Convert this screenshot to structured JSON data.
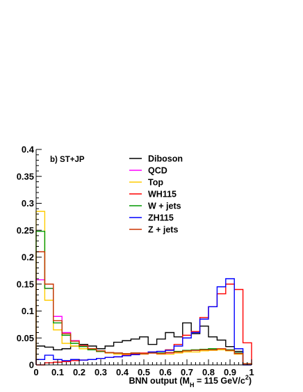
{
  "chart_data": {
    "type": "histogram",
    "panel_label": "b) ST+JP",
    "xlabel": {
      "prefix": "BNN output (M",
      "sub": "H",
      "mid": " = 115 GeV/c",
      "sup": "2",
      "suffix": ")"
    },
    "ylabel": "",
    "xlim": [
      0,
      1
    ],
    "ylim": [
      0,
      0.4
    ],
    "x_ticks": [
      "0",
      "0.1",
      "0.2",
      "0.3",
      "0.4",
      "0.5",
      "0.6",
      "0.7",
      "0.8",
      "0.9",
      "1"
    ],
    "y_ticks": [
      "0",
      "0.05",
      "0.1",
      "0.15",
      "0.2",
      "0.25",
      "0.3",
      "0.35",
      "0.4"
    ],
    "bin_edges": [
      0,
      0.04,
      0.08,
      0.12,
      0.16,
      0.2,
      0.24,
      0.28,
      0.32,
      0.36,
      0.4,
      0.44,
      0.48,
      0.52,
      0.56,
      0.6,
      0.64,
      0.68,
      0.72,
      0.76,
      0.8,
      0.84,
      0.88,
      0.92,
      0.96,
      1.0
    ],
    "legend_position": "top-right",
    "series": [
      {
        "name": "Diboson",
        "color": "#000000",
        "values": [
          0.035,
          0.033,
          0.028,
          0.03,
          0.035,
          0.038,
          0.035,
          0.03,
          0.035,
          0.042,
          0.045,
          0.048,
          0.052,
          0.038,
          0.048,
          0.06,
          0.052,
          0.078,
          0.058,
          0.072,
          0.052,
          0.046,
          0.034,
          0.025,
          0.002
        ]
      },
      {
        "name": "QCD",
        "color": "#ff00ff",
        "values": [
          0.158,
          0.142,
          0.09,
          0.06,
          0.045,
          0.035,
          0.03,
          0.025,
          0.022,
          0.022,
          0.02,
          0.022,
          0.02,
          0.022,
          0.02,
          0.022,
          0.024,
          0.026,
          0.027,
          0.028,
          0.03,
          0.03,
          0.028,
          0.022,
          0.002
        ]
      },
      {
        "name": "Top",
        "color": "#ffcc00",
        "values": [
          0.285,
          0.12,
          0.065,
          0.04,
          0.035,
          0.03,
          0.028,
          0.025,
          0.022,
          0.02,
          0.02,
          0.022,
          0.02,
          0.022,
          0.02,
          0.02,
          0.022,
          0.024,
          0.024,
          0.026,
          0.027,
          0.028,
          0.026,
          0.02,
          0.002
        ]
      },
      {
        "name": "WH115",
        "color": "#ff0000",
        "values": [
          0.0,
          0.004,
          0.005,
          0.006,
          0.008,
          0.009,
          0.01,
          0.012,
          0.014,
          0.015,
          0.018,
          0.02,
          0.022,
          0.024,
          0.025,
          0.028,
          0.038,
          0.055,
          0.062,
          0.088,
          0.108,
          0.132,
          0.15,
          0.14,
          0.041
        ]
      },
      {
        "name": "W + jets",
        "color": "#009900",
        "values": [
          0.248,
          0.142,
          0.078,
          0.055,
          0.04,
          0.034,
          0.028,
          0.025,
          0.023,
          0.022,
          0.021,
          0.022,
          0.021,
          0.023,
          0.022,
          0.023,
          0.025,
          0.027,
          0.028,
          0.029,
          0.03,
          0.03,
          0.028,
          0.022,
          0.002
        ]
      },
      {
        "name": "ZH115",
        "color": "#0000ff",
        "values": [
          0.01,
          0.018,
          0.01,
          0.008,
          0.01,
          0.009,
          0.01,
          0.012,
          0.014,
          0.015,
          0.017,
          0.019,
          0.021,
          0.024,
          0.025,
          0.027,
          0.035,
          0.05,
          0.06,
          0.085,
          0.108,
          0.145,
          0.16,
          0.03,
          0.0
        ]
      },
      {
        "name": "Z + jets",
        "color": "#cc3300",
        "values": [
          0.21,
          0.15,
          0.082,
          0.058,
          0.044,
          0.036,
          0.03,
          0.026,
          0.023,
          0.022,
          0.021,
          0.022,
          0.021,
          0.022,
          0.021,
          0.023,
          0.024,
          0.026,
          0.027,
          0.028,
          0.028,
          0.03,
          0.027,
          0.021,
          0.002
        ]
      }
    ]
  }
}
